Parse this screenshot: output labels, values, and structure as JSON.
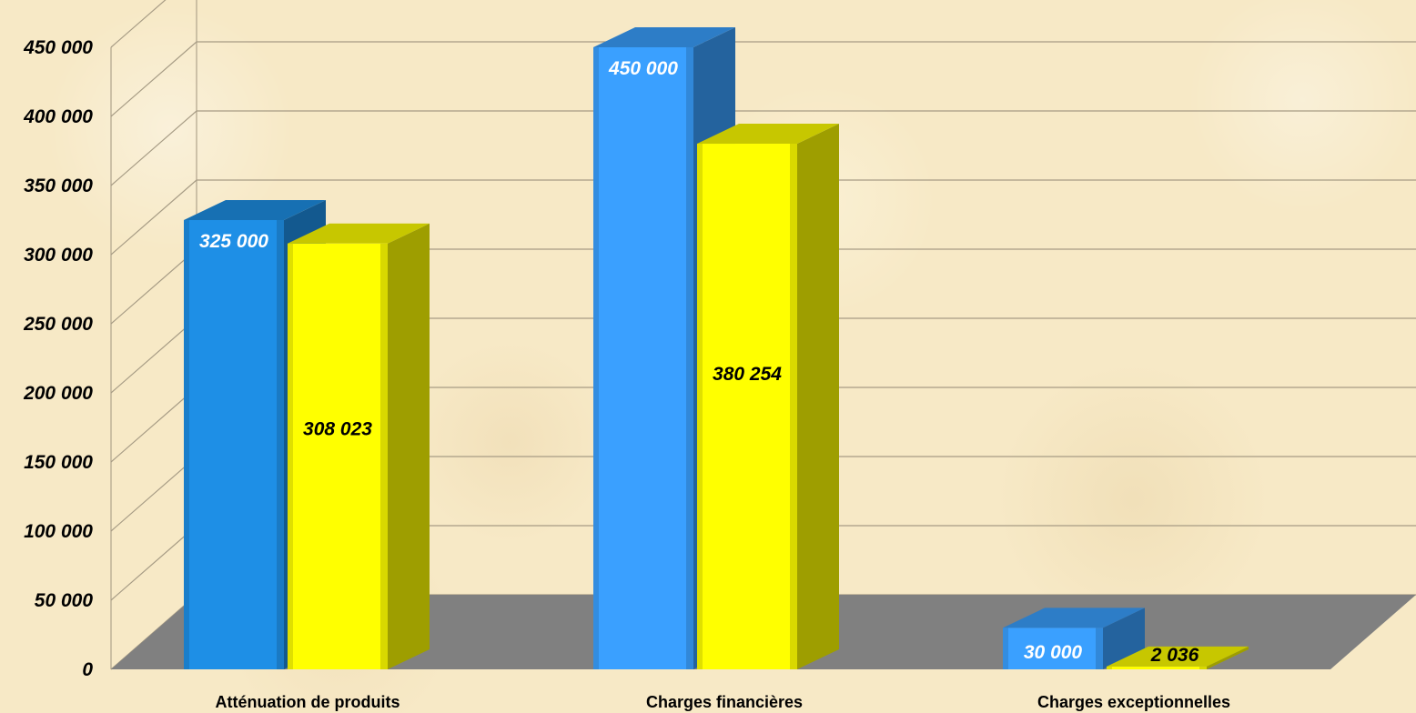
{
  "chart_data": {
    "type": "bar",
    "categories": [
      "Atténuation de produits",
      "Charges financières",
      "Charges exceptionnelles"
    ],
    "series": [
      {
        "values": [
          325000,
          450000,
          30000
        ],
        "labels": [
          "325 000",
          "450 000",
          "30 000"
        ],
        "color": "#1e8fe6",
        "label_color": "#ffffff"
      },
      {
        "values": [
          308023,
          380254,
          2036
        ],
        "labels": [
          "308 023",
          "380 254",
          "2 036"
        ],
        "color": "#ffff00",
        "label_color": "#000000"
      }
    ],
    "ylim": [
      0,
      450000
    ],
    "yticks": [
      0,
      50000,
      100000,
      150000,
      200000,
      250000,
      300000,
      350000,
      400000,
      450000
    ],
    "ytick_labels": [
      "0",
      "50 000",
      "100 000",
      "150 000",
      "200 000",
      "250 000",
      "300 000",
      "350 000",
      "400 000",
      "450 000"
    ],
    "grid": true,
    "legend": "none",
    "style": "3d-clustered-column",
    "floor_color": "#808080"
  }
}
